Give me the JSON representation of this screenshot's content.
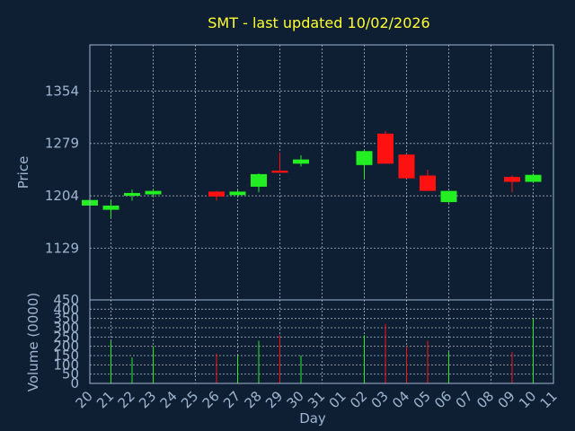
{
  "chart_data": [
    {
      "type": "candlestick",
      "title": "SMT - last updated 10/02/2026",
      "ylabel": "Price",
      "xlabel": "Day",
      "ylim": [
        1055,
        1420
      ],
      "yticks": [
        1129,
        1204,
        1279,
        1354
      ],
      "x": [
        "20",
        "21",
        "22",
        "23",
        "24",
        "25",
        "26",
        "27",
        "28",
        "29",
        "30",
        "31",
        "01",
        "02",
        "03",
        "04",
        "05",
        "06",
        "07",
        "08",
        "09",
        "10",
        "11"
      ],
      "candles": [
        {
          "x": "20",
          "open": 1190,
          "close": 1198,
          "high": 1199,
          "low": 1189,
          "color": "up"
        },
        {
          "x": "21",
          "open": 1184,
          "close": 1190,
          "high": 1198,
          "low": 1172,
          "color": "up"
        },
        {
          "x": "22",
          "open": 1204,
          "close": 1208,
          "high": 1213,
          "low": 1197,
          "color": "up"
        },
        {
          "x": "23",
          "open": 1206,
          "close": 1211,
          "high": 1214,
          "low": 1203,
          "color": "up"
        },
        {
          "x": "26",
          "open": 1210,
          "close": 1203,
          "high": 1211,
          "low": 1197,
          "color": "down"
        },
        {
          "x": "27",
          "open": 1205,
          "close": 1210,
          "high": 1212,
          "low": 1203,
          "color": "up"
        },
        {
          "x": "28",
          "open": 1217,
          "close": 1235,
          "high": 1236,
          "low": 1209,
          "color": "up"
        },
        {
          "x": "29",
          "open": 1240,
          "close": 1237,
          "high": 1266,
          "low": 1237,
          "color": "down"
        },
        {
          "x": "30",
          "open": 1250,
          "close": 1256,
          "high": 1262,
          "low": 1246,
          "color": "up"
        },
        {
          "x": "02",
          "open": 1248,
          "close": 1268,
          "high": 1270,
          "low": 1228,
          "color": "up"
        },
        {
          "x": "03",
          "open": 1293,
          "close": 1250,
          "high": 1297,
          "low": 1250,
          "color": "down"
        },
        {
          "x": "04",
          "open": 1263,
          "close": 1229,
          "high": 1264,
          "low": 1229,
          "color": "down"
        },
        {
          "x": "05",
          "open": 1233,
          "close": 1211,
          "high": 1241,
          "low": 1211,
          "color": "down"
        },
        {
          "x": "06",
          "open": 1195,
          "close": 1211,
          "high": 1211,
          "low": 1194,
          "color": "up"
        },
        {
          "x": "09",
          "open": 1231,
          "close": 1224,
          "high": 1233,
          "low": 1209,
          "color": "down"
        },
        {
          "x": "10",
          "open": 1224,
          "close": 1234,
          "high": 1236,
          "low": 1223,
          "color": "up"
        }
      ]
    },
    {
      "type": "bar",
      "ylabel": "Volume (0000)",
      "ylim": [
        0,
        450
      ],
      "yticks": [
        0,
        50,
        100,
        150,
        200,
        250,
        300,
        350,
        400,
        450
      ],
      "bars": [
        {
          "x": "21",
          "value": 230,
          "color": "up"
        },
        {
          "x": "22",
          "value": 140,
          "color": "up"
        },
        {
          "x": "23",
          "value": 200,
          "color": "up"
        },
        {
          "x": "26",
          "value": 160,
          "color": "down"
        },
        {
          "x": "27",
          "value": 150,
          "color": "up"
        },
        {
          "x": "28",
          "value": 230,
          "color": "up"
        },
        {
          "x": "29",
          "value": 260,
          "color": "down"
        },
        {
          "x": "30",
          "value": 150,
          "color": "up"
        },
        {
          "x": "02",
          "value": 260,
          "color": "up"
        },
        {
          "x": "03",
          "value": 320,
          "color": "down"
        },
        {
          "x": "04",
          "value": 200,
          "color": "down"
        },
        {
          "x": "05",
          "value": 230,
          "color": "down"
        },
        {
          "x": "06",
          "value": 170,
          "color": "up"
        },
        {
          "x": "09",
          "value": 170,
          "color": "down"
        },
        {
          "x": "10",
          "value": 350,
          "color": "up"
        }
      ]
    }
  ],
  "colors": {
    "background": "#0f1f33",
    "up": "#22ee22",
    "down": "#ff1111",
    "text": "#9fb5d0",
    "title": "#ffff33"
  }
}
